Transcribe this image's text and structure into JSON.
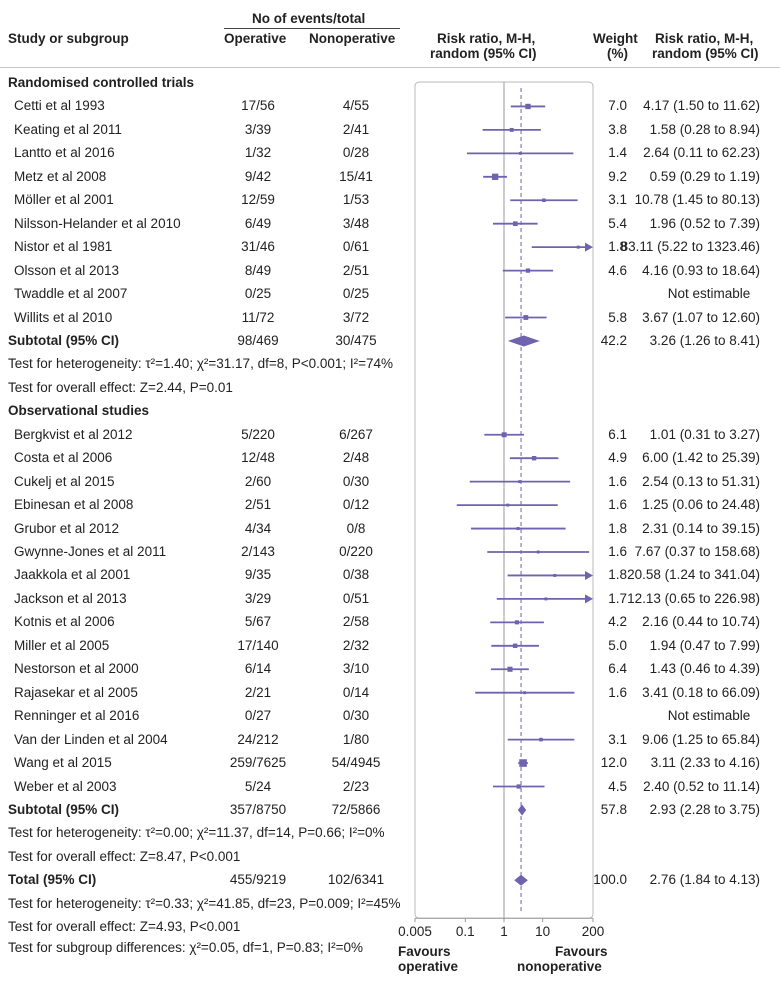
{
  "header": {
    "study_col": "Study or subgroup",
    "events_group": "No of events/total",
    "operative_col": "Operative",
    "nonoperative_col": "Nonoperative",
    "rr_plot_col": [
      "Risk ratio, M-H,",
      "random (95% CI)"
    ],
    "weight_col": [
      "Weight",
      "(%)"
    ],
    "rr_text_col": [
      "Risk ratio, M-H,",
      "random (95% CI)"
    ]
  },
  "footer": {
    "favours_left": [
      "Favours",
      "operative"
    ],
    "favours_right": [
      "Favours",
      "nonoperative"
    ],
    "subgroup_test": "Test for subgroup differences: χ²=0.05, df=1, P=0.83; I²=0%"
  },
  "colors": {
    "marker": "#6f63b0",
    "axis": "#9a9a9a",
    "dashed": "#6f63b0",
    "text": "#222222"
  },
  "chart_data": {
    "type": "forest",
    "x_scale": "log",
    "xlim": [
      0.005,
      200
    ],
    "xticks": [
      0.005,
      0.1,
      1,
      10,
      200
    ],
    "xtick_labels": [
      "0.005",
      "0.1",
      "1",
      "10",
      "200"
    ],
    "pooled_rr": 2.76,
    "sections": [
      {
        "title": "Randomised controlled trials",
        "studies": [
          {
            "name": "Cetti et al 1993",
            "op": "17/56",
            "nonop": "4/55",
            "weight": "7.0",
            "rr": 4.17,
            "lo": 1.5,
            "hi": 11.62,
            "label": "4.17 (1.50 to 11.62)"
          },
          {
            "name": "Keating et al 2011",
            "op": "3/39",
            "nonop": "2/41",
            "weight": "3.8",
            "rr": 1.58,
            "lo": 0.28,
            "hi": 8.94,
            "label": "1.58 (0.28 to 8.94)"
          },
          {
            "name": "Lantto et al 2016",
            "op": "1/32",
            "nonop": "0/28",
            "weight": "1.4",
            "rr": 2.64,
            "lo": 0.11,
            "hi": 62.23,
            "label": "2.64 (0.11 to 62.23)"
          },
          {
            "name": "Metz et al 2008",
            "op": "9/42",
            "nonop": "15/41",
            "weight": "9.2",
            "rr": 0.59,
            "lo": 0.29,
            "hi": 1.19,
            "label": "0.59 (0.29 to 1.19)"
          },
          {
            "name": "Möller et al 2001",
            "op": "12/59",
            "nonop": "1/53",
            "weight": "3.1",
            "rr": 10.78,
            "lo": 1.45,
            "hi": 80.13,
            "label": "10.78 (1.45 to 80.13)"
          },
          {
            "name": "Nilsson-Helander et al 2010",
            "op": "6/49",
            "nonop": "3/48",
            "weight": "5.4",
            "rr": 1.96,
            "lo": 0.52,
            "hi": 7.39,
            "label": "1.96 (0.52 to 7.39)"
          },
          {
            "name": "Nistor et al 1981",
            "op": "31/46",
            "nonop": "0/61",
            "weight": "1.8",
            "rr": 83.11,
            "lo": 5.22,
            "hi": 1323.46,
            "label": "83.11 (5.22 to 1323.46)"
          },
          {
            "name": "Olsson et al 2013",
            "op": "8/49",
            "nonop": "2/51",
            "weight": "4.6",
            "rr": 4.16,
            "lo": 0.93,
            "hi": 18.64,
            "label": "4.16 (0.93 to 18.64)"
          },
          {
            "name": "Twaddle et al 2007",
            "op": "0/25",
            "nonop": "0/25",
            "weight": "",
            "rr": null,
            "lo": null,
            "hi": null,
            "label": "Not estimable"
          },
          {
            "name": "Willits et al 2010",
            "op": "11/72",
            "nonop": "3/72",
            "weight": "5.8",
            "rr": 3.67,
            "lo": 1.07,
            "hi": 12.6,
            "label": "3.67 (1.07 to 12.60)"
          }
        ],
        "subtotal": {
          "name": "Subtotal (95% CI)",
          "op": "98/469",
          "nonop": "30/475",
          "weight": "42.2",
          "rr": 3.26,
          "lo": 1.26,
          "hi": 8.41,
          "label": "3.26 (1.26 to 8.41)"
        },
        "heterogeneity": "Test for heterogeneity: τ²=1.40; χ²=31.17, df=8, P<0.001; I²=74%",
        "overall": "Test for overall effect: Z=2.44, P=0.01"
      },
      {
        "title": "Observational studies",
        "studies": [
          {
            "name": "Bergkvist et al 2012",
            "op": "5/220",
            "nonop": "6/267",
            "weight": "6.1",
            "rr": 1.01,
            "lo": 0.31,
            "hi": 3.27,
            "label": "1.01 (0.31 to 3.27)"
          },
          {
            "name": "Costa et al 2006",
            "op": "12/48",
            "nonop": "2/48",
            "weight": "4.9",
            "rr": 6.0,
            "lo": 1.42,
            "hi": 25.39,
            "label": "6.00 (1.42 to 25.39)"
          },
          {
            "name": "Cukelj et al 2015",
            "op": "2/60",
            "nonop": "0/30",
            "weight": "1.6",
            "rr": 2.54,
            "lo": 0.13,
            "hi": 51.31,
            "label": "2.54 (0.13 to 51.31)"
          },
          {
            "name": "Ebinesan et al 2008",
            "op": "2/51",
            "nonop": "0/12",
            "weight": "1.6",
            "rr": 1.25,
            "lo": 0.06,
            "hi": 24.48,
            "label": "1.25 (0.06 to 24.48)"
          },
          {
            "name": "Grubor et al 2012",
            "op": "4/34",
            "nonop": "0/8",
            "weight": "1.8",
            "rr": 2.31,
            "lo": 0.14,
            "hi": 39.15,
            "label": "2.31 (0.14 to 39.15)"
          },
          {
            "name": "Gwynne-Jones et al 2011",
            "op": "2/143",
            "nonop": "0/220",
            "weight": "1.6",
            "rr": 7.67,
            "lo": 0.37,
            "hi": 158.68,
            "label": "7.67 (0.37 to 158.68)"
          },
          {
            "name": "Jaakkola et al 2001",
            "op": "9/35",
            "nonop": "0/38",
            "weight": "1.8",
            "rr": 20.58,
            "lo": 1.24,
            "hi": 341.04,
            "label": "20.58 (1.24 to 341.04)"
          },
          {
            "name": "Jackson et al 2013",
            "op": "3/29",
            "nonop": "0/51",
            "weight": "1.7",
            "rr": 12.13,
            "lo": 0.65,
            "hi": 226.98,
            "label": "12.13 (0.65 to 226.98)"
          },
          {
            "name": "Kotnis et al 2006",
            "op": "5/67",
            "nonop": "2/58",
            "weight": "4.2",
            "rr": 2.16,
            "lo": 0.44,
            "hi": 10.74,
            "label": "2.16 (0.44 to 10.74)"
          },
          {
            "name": "Miller et al 2005",
            "op": "17/140",
            "nonop": "2/32",
            "weight": "5.0",
            "rr": 1.94,
            "lo": 0.47,
            "hi": 7.99,
            "label": "1.94 (0.47 to 7.99)"
          },
          {
            "name": "Nestorson et al 2000",
            "op": "6/14",
            "nonop": "3/10",
            "weight": "6.4",
            "rr": 1.43,
            "lo": 0.46,
            "hi": 4.39,
            "label": "1.43 (0.46 to 4.39)"
          },
          {
            "name": "Rajasekar et al 2005",
            "op": "2/21",
            "nonop": "0/14",
            "weight": "1.6",
            "rr": 3.41,
            "lo": 0.18,
            "hi": 66.09,
            "label": "3.41 (0.18 to 66.09)"
          },
          {
            "name": "Renninger et al 2016",
            "op": "0/27",
            "nonop": "0/30",
            "weight": "",
            "rr": null,
            "lo": null,
            "hi": null,
            "label": "Not estimable"
          },
          {
            "name": "Van der Linden et al 2004",
            "op": "24/212",
            "nonop": "1/80",
            "weight": "3.1",
            "rr": 9.06,
            "lo": 1.25,
            "hi": 65.84,
            "label": "9.06 (1.25 to 65.84)"
          },
          {
            "name": "Wang et al 2015",
            "op": "259/7625",
            "nonop": "54/4945",
            "weight": "12.0",
            "rr": 3.11,
            "lo": 2.33,
            "hi": 4.16,
            "label": "3.11 (2.33 to 4.16)"
          },
          {
            "name": "Weber et al 2003",
            "op": "5/24",
            "nonop": "2/23",
            "weight": "4.5",
            "rr": 2.4,
            "lo": 0.52,
            "hi": 11.14,
            "label": "2.40 (0.52 to 11.14)"
          }
        ],
        "subtotal": {
          "name": "Subtotal (95% CI)",
          "op": "357/8750",
          "nonop": "72/5866",
          "weight": "57.8",
          "rr": 2.93,
          "lo": 2.28,
          "hi": 3.75,
          "label": "2.93 (2.28 to 3.75)"
        },
        "heterogeneity": "Test for heterogeneity: τ²=0.00; χ²=11.37, df=14, P=0.66; I²=0%",
        "overall": "Test for overall effect: Z=8.47, P<0.001"
      }
    ],
    "total": {
      "name": "Total (95% CI)",
      "op": "455/9219",
      "nonop": "102/6341",
      "weight": "100.0",
      "rr": 2.76,
      "lo": 1.84,
      "hi": 4.13,
      "label": "2.76 (1.84 to 4.13)"
    },
    "total_heterogeneity": "Test for heterogeneity: τ²=0.33; χ²=41.85, df=23, P=0.009; I²=45%",
    "total_overall": "Test for overall effect: Z=4.93, P<0.001"
  }
}
